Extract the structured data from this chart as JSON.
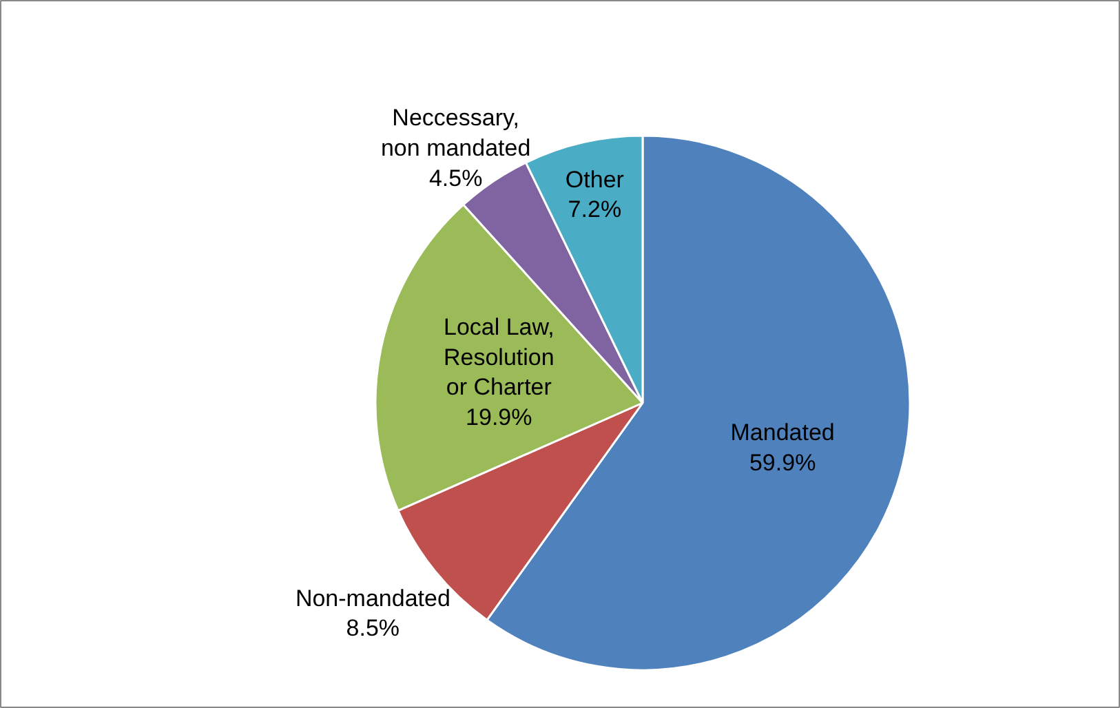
{
  "chart_data": {
    "type": "pie",
    "categories": [
      "Mandated",
      "Non-mandated",
      "Local Law, Resolution or Charter",
      "Neccessary, non mandated",
      "Other"
    ],
    "values": [
      59.9,
      8.5,
      19.9,
      4.5,
      7.2
    ],
    "colors": [
      "#4f81bd",
      "#c0504d",
      "#9bbb59",
      "#8064a2",
      "#4bacc6"
    ],
    "value_labels": [
      "59.9%",
      "8.5%",
      "19.9%",
      "4.5%",
      "7.2%"
    ]
  }
}
